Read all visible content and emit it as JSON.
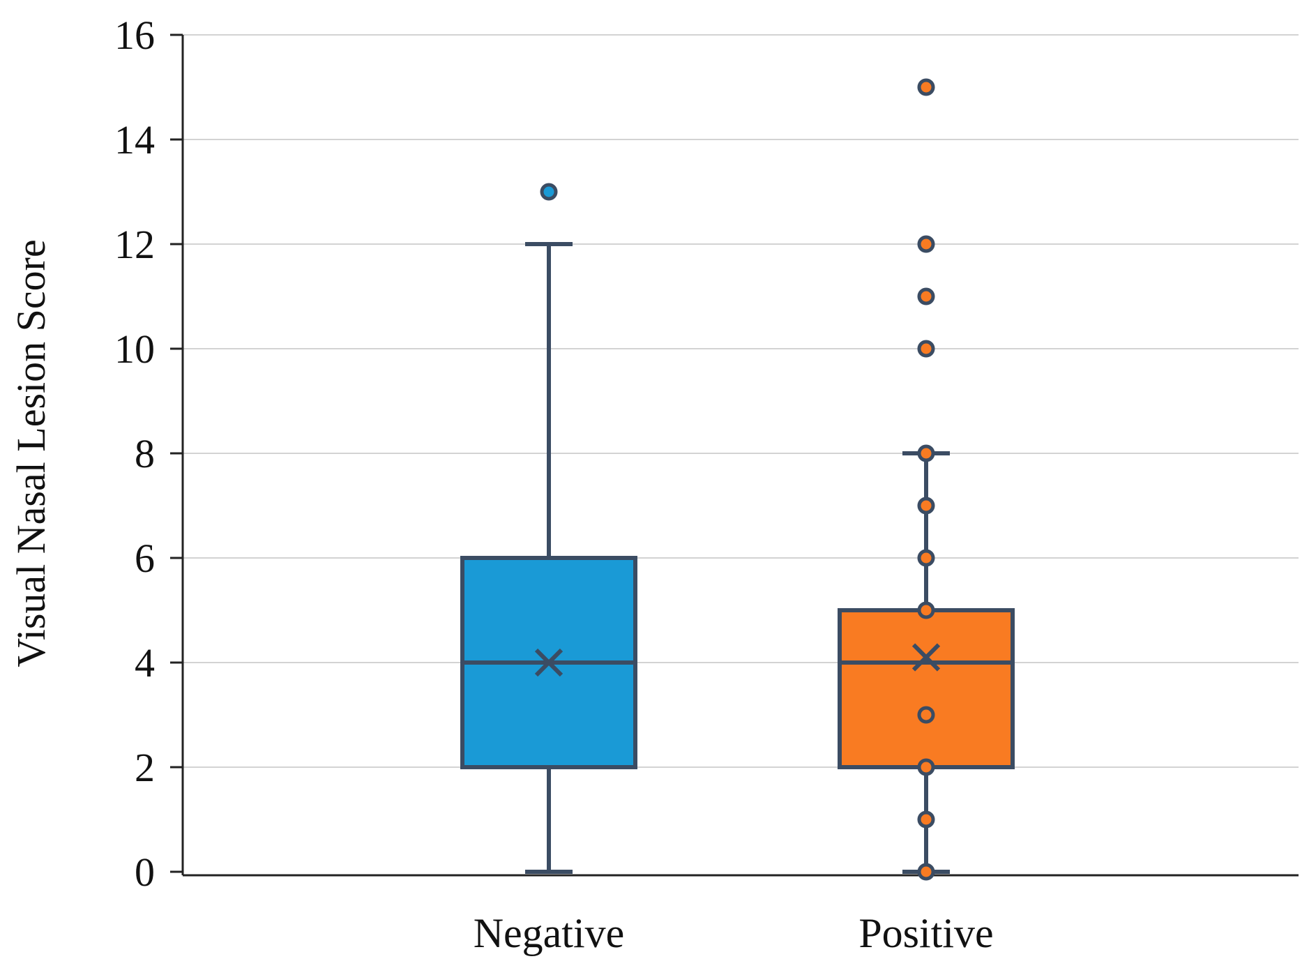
{
  "chart_data": {
    "type": "box",
    "title": "",
    "xlabel": "",
    "ylabel": "Visual Nasal Lesion Score",
    "ylim": [
      0,
      16
    ],
    "yticks": [
      "0",
      "2",
      "4",
      "6",
      "8",
      "10",
      "12",
      "14",
      "16"
    ],
    "grid": true,
    "categories": [
      "Negative",
      "Positive"
    ],
    "series": [
      {
        "name": "Negative",
        "color": "#1a9ad6",
        "stroke": "#3b4c63",
        "min": 0,
        "q1": 2,
        "median": 4,
        "q3": 6,
        "max": 12,
        "mean": 4.0,
        "outliers": [
          13
        ],
        "points": []
      },
      {
        "name": "Positive",
        "color": "#f97b22",
        "stroke": "#3b4c63",
        "min": 0,
        "q1": 2,
        "median": 4,
        "q3": 5,
        "max": 8,
        "mean": 4.1,
        "outliers": [
          10,
          11,
          12,
          15
        ],
        "points": [
          0,
          1,
          2,
          3,
          5,
          6,
          7,
          8
        ]
      }
    ]
  }
}
